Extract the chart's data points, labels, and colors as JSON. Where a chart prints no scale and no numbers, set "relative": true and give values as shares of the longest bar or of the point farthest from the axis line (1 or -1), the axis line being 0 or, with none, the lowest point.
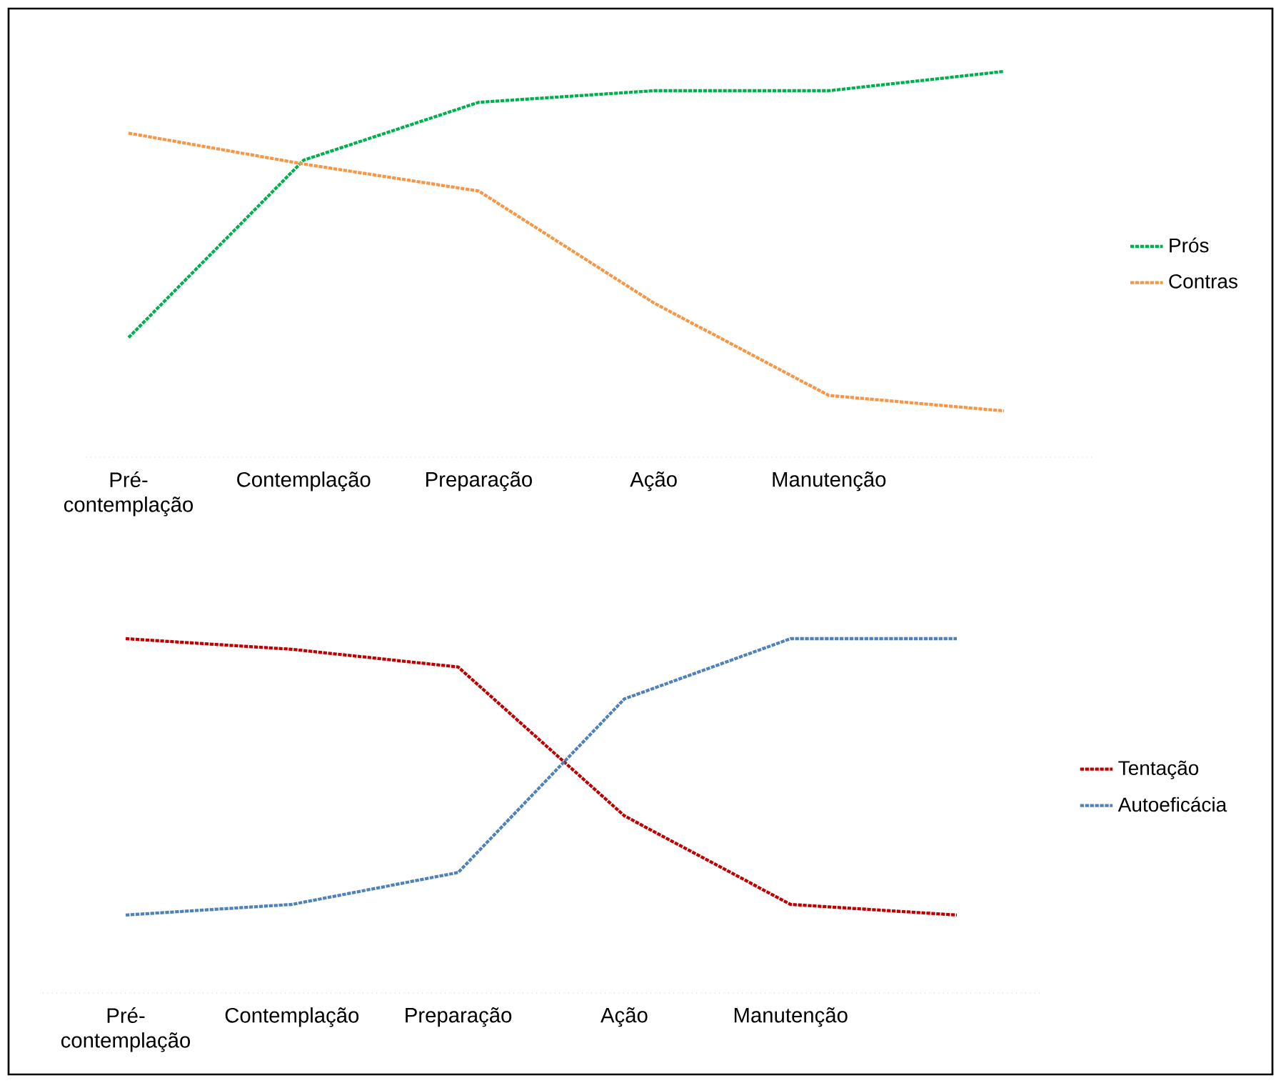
{
  "chart_data": [
    {
      "type": "line",
      "relative": true,
      "legend": "right",
      "line_style": "dashed",
      "categories": [
        "Pré-contemplação",
        "Contemplação",
        "Preparação",
        "Ação",
        "Manutenção",
        null
      ],
      "series": [
        {
          "name": "Prós",
          "color": "#00b050",
          "values": [
            0.31,
            0.77,
            0.92,
            0.95,
            0.95,
            1
          ]
        },
        {
          "name": "Contras",
          "color": "#f79646",
          "values": [
            0.84,
            0.76,
            0.69,
            0.4,
            0.16,
            0.12
          ]
        }
      ]
    },
    {
      "type": "line",
      "relative": true,
      "legend": "right",
      "line_style": "dashed",
      "categories": [
        "Pré-contemplação",
        "Contemplação",
        "Preparação",
        "Ação",
        "Manutenção",
        null
      ],
      "series": [
        {
          "name": "Tentação",
          "color": "#c00000",
          "values": [
            1,
            0.97,
            0.92,
            0.5,
            0.25,
            0.22
          ]
        },
        {
          "name": "Autoeficácia",
          "color": "#4f81bd",
          "values": [
            0.22,
            0.25,
            0.34,
            0.83,
            1,
            1
          ]
        }
      ]
    }
  ]
}
